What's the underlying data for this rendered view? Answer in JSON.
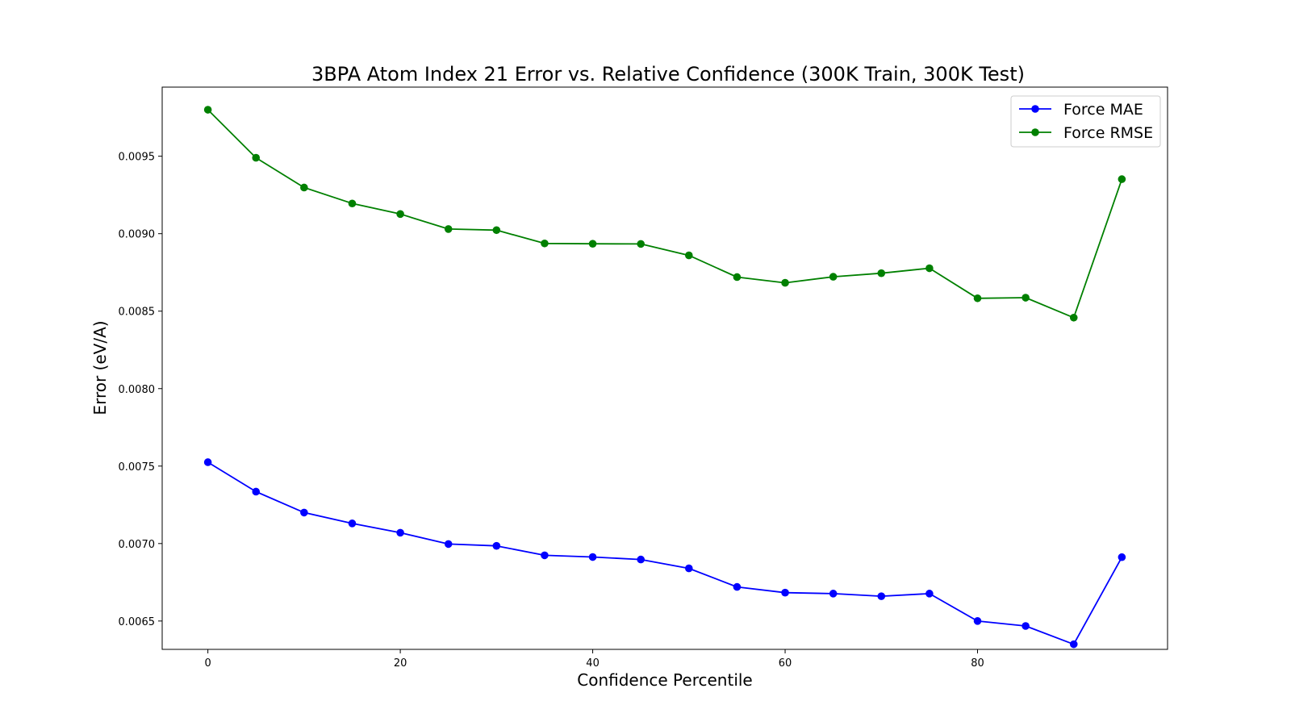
{
  "chart_data": {
    "type": "line",
    "title": "3BPA Atom Index 21 Error vs. Relative Confidence (300K Train, 300K Test)",
    "xlabel": "Confidence Percentile",
    "ylabel": "Error (eV/A)",
    "xlim": [
      -4.75,
      99.75
    ],
    "ylim": [
      0.006317,
      0.009946
    ],
    "x_ticks": [
      0,
      20,
      40,
      60,
      80
    ],
    "x_tick_labels": [
      "0",
      "20",
      "40",
      "60",
      "80"
    ],
    "y_ticks": [
      0.0065,
      0.007,
      0.0075,
      0.008,
      0.0085,
      0.009,
      0.0095
    ],
    "y_tick_labels": [
      "0.0065",
      "0.0070",
      "0.0075",
      "0.0080",
      "0.0085",
      "0.0090",
      "0.0095"
    ],
    "grid": false,
    "legend_position": "top-right",
    "x": [
      0,
      5,
      10,
      15,
      20,
      25,
      30,
      35,
      40,
      45,
      50,
      55,
      60,
      65,
      70,
      75,
      80,
      85,
      90,
      95
    ],
    "series": [
      {
        "name": "Force MAE",
        "color": "#0000ff",
        "marker": "circle",
        "values": [
          0.007525,
          0.007335,
          0.0072,
          0.00713,
          0.00707,
          0.006997,
          0.006985,
          0.006924,
          0.006913,
          0.006897,
          0.00684,
          0.00672,
          0.006683,
          0.006677,
          0.00666,
          0.006677,
          0.0065,
          0.006468,
          0.00635,
          0.006912
        ]
      },
      {
        "name": "Force RMSE",
        "color": "#008000",
        "marker": "circle",
        "values": [
          0.0098,
          0.00949,
          0.009298,
          0.009195,
          0.009127,
          0.00903,
          0.009023,
          0.008937,
          0.008935,
          0.008934,
          0.00886,
          0.00872,
          0.008683,
          0.008722,
          0.008745,
          0.008777,
          0.008583,
          0.008587,
          0.008458,
          0.009352
        ]
      }
    ]
  }
}
